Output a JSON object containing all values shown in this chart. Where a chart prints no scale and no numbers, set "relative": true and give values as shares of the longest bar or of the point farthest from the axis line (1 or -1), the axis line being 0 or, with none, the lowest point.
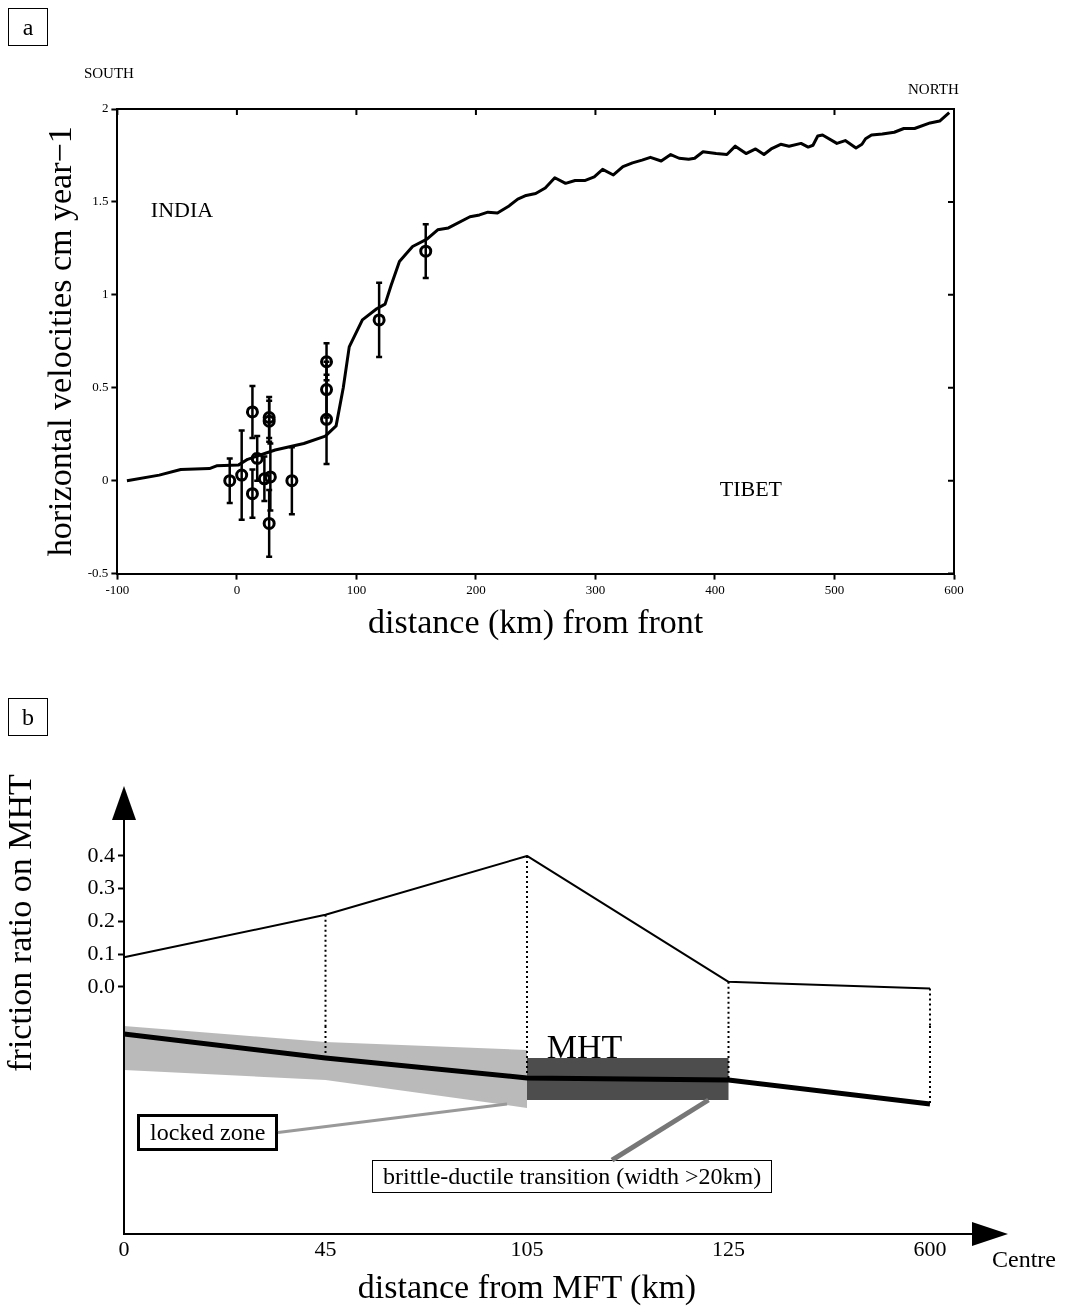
{
  "chart_data": [
    {
      "type": "line",
      "title": "a",
      "xlabel": "distance (km) from front",
      "ylabel": "horizontal velocities cm year−1",
      "xlim": [
        -100,
        600
      ],
      "xticks": [
        -100,
        0,
        100,
        200,
        300,
        400,
        500,
        600
      ],
      "ylim": [
        -0.5,
        2
      ],
      "yticks": [
        -0.5,
        0,
        0.5,
        1,
        1.5,
        2
      ],
      "annotations": [
        "SOUTH",
        "NORTH",
        "INDIA",
        "TIBET"
      ],
      "series": [
        {
          "type": "line",
          "color": "#000000",
          "x": [
            -92,
            -65,
            -47,
            -23,
            -17,
            1.5,
            9,
            32,
            56,
            74,
            83,
            89,
            94,
            105,
            117,
            124,
            129,
            136,
            147,
            159,
            168,
            177,
            195,
            203,
            210,
            218,
            227,
            235,
            242,
            250,
            258,
            266,
            275,
            283,
            291,
            299,
            306,
            315,
            323,
            331,
            339,
            346,
            355,
            363,
            370,
            378,
            383,
            390,
            401,
            410,
            417,
            426,
            434,
            441,
            447,
            455,
            462,
            472,
            478,
            482,
            486,
            490,
            502,
            509,
            518,
            523,
            526,
            531,
            540,
            550,
            558,
            567,
            580,
            588,
            596
          ],
          "values": [
            0,
            0.03,
            0.06,
            0.065,
            0.08,
            0.085,
            0.115,
            0.165,
            0.2,
            0.24,
            0.295,
            0.5,
            0.72,
            0.865,
            0.925,
            0.95,
            1.05,
            1.18,
            1.26,
            1.3,
            1.35,
            1.36,
            1.42,
            1.43,
            1.445,
            1.44,
            1.475,
            1.515,
            1.535,
            1.545,
            1.575,
            1.63,
            1.6,
            1.615,
            1.615,
            1.635,
            1.675,
            1.645,
            1.69,
            1.71,
            1.725,
            1.74,
            1.72,
            1.755,
            1.735,
            1.73,
            1.735,
            1.77,
            1.76,
            1.755,
            1.8,
            1.76,
            1.785,
            1.755,
            1.785,
            1.81,
            1.8,
            1.815,
            1.795,
            1.805,
            1.855,
            1.86,
            1.815,
            1.83,
            1.79,
            1.81,
            1.84,
            1.86,
            1.865,
            1.875,
            1.895,
            1.895,
            1.925,
            1.935,
            1.98
          ]
        },
        {
          "type": "scatter",
          "color": "#000000",
          "marker": "circle",
          "x": [
            -6,
            4,
            13,
            13,
            17,
            23,
            24,
            27,
            27,
            28,
            27,
            46,
            75,
            75,
            75,
            119,
            158
          ],
          "values": [
            0,
            0.03,
            0.37,
            -0.07,
            0.12,
            0.01,
            null,
            0.34,
            0.32,
            0.02,
            -0.23,
            0,
            0.64,
            0.49,
            0.33,
            0.865,
            1.235
          ],
          "errors": [
            0.12,
            0.24,
            0.14,
            0.13,
            0.12,
            0.12,
            null,
            0.11,
            0.11,
            0.18,
            0.18,
            0.18,
            0.1,
            0.15,
            0.24,
            0.2,
            0.145
          ]
        }
      ]
    },
    {
      "type": "line",
      "title": "b",
      "ylabel": "friction ratio on MHT",
      "categories": [
        "0",
        "45",
        "105",
        "125",
        "600"
      ],
      "ylim": [
        -0.12,
        0.51
      ],
      "yticks": [
        {
          "value": 0,
          "label": "0.0"
        },
        0.1,
        0.2,
        0.3,
        0.4
      ],
      "tick_labels": "y",
      "ref_lines": [
        {
          "axis": "x",
          "value": "45",
          "line_style": "dotted"
        },
        {
          "axis": "x",
          "value": "105",
          "line_style": "dotted"
        },
        {
          "axis": "x",
          "value": "125",
          "line_style": "dotted"
        },
        {
          "axis": "x",
          "value": "600",
          "line_style": "dotted"
        }
      ],
      "series": [
        {
          "color": "#000000",
          "values": [
            0.09,
            0.22,
            0.4,
            0.015,
            -0.005
          ]
        }
      ]
    },
    {
      "type": "line",
      "relative": true,
      "xlabel": "distance from MFT (km)",
      "categories": [
        "0",
        "45",
        "105",
        "125",
        "600"
      ],
      "annotations": [
        "locked zone",
        "Centre"
      ],
      "ref_lines": [
        {
          "axis": "x",
          "value": "45",
          "line_style": "dotted"
        },
        {
          "axis": "x",
          "value": "105",
          "line_style": "dotted"
        },
        {
          "axis": "x",
          "value": "125",
          "line_style": "dotted"
        },
        {
          "axis": "x",
          "value": "600",
          "line_style": "dotted"
        }
      ],
      "bands": [
        {
          "axis": "x",
          "from": "105",
          "to": "125",
          "label": "brittle-ductile transition (width >20km)",
          "color": "#4d4d4d"
        }
      ],
      "series": [
        {
          "name": "MHT",
          "color": "#000000",
          "values": [
            1,
            0.88,
            0.78,
            0.77,
            0.65
          ],
          "lower": [
            0.82,
            0.77,
            0.63,
            null,
            null
          ],
          "upper": [
            1.04,
            0.96,
            0.92,
            null,
            null
          ]
        }
      ]
    }
  ]
}
